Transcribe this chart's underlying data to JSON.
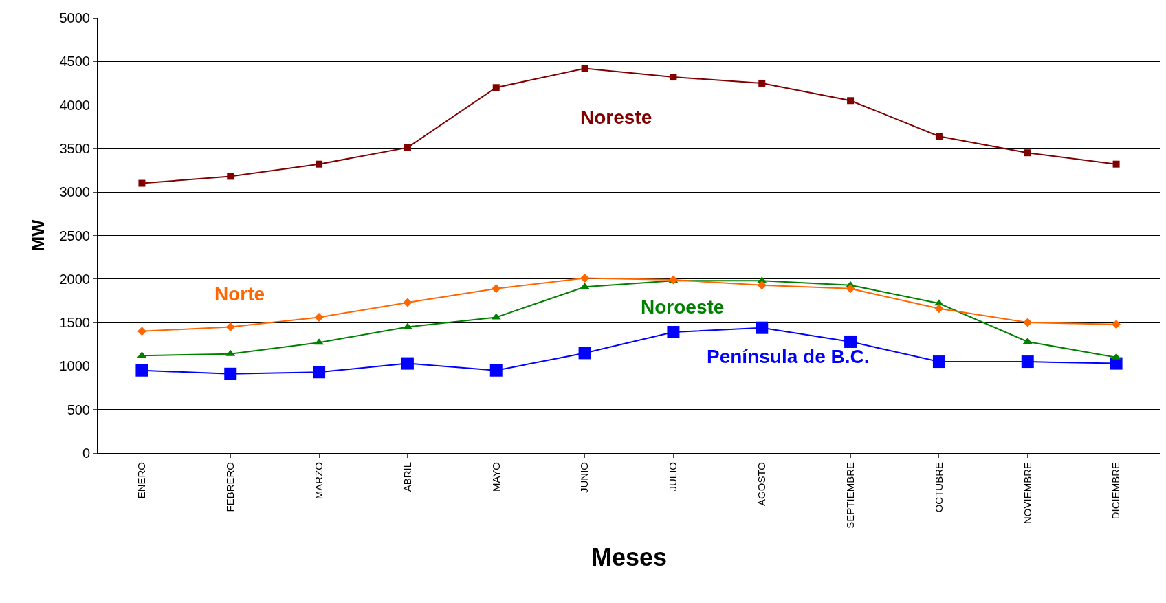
{
  "chart_data": {
    "type": "line",
    "xlabel": "Meses",
    "ylabel": "MW",
    "categories": [
      "ENERO",
      "FEBRERO",
      "MARZO",
      "ABRIL",
      "MAYO",
      "JUNIO",
      "JULIO",
      "AGOSTO",
      "SEPTIEMBRE",
      "OCTUBRE",
      "NOVIEMBRE",
      "DICIEMBRE"
    ],
    "series": [
      {
        "name": "Noreste",
        "color": "#800000",
        "marker": "square",
        "values": [
          3100,
          3180,
          3320,
          3510,
          4200,
          4420,
          4320,
          4250,
          4050,
          3640,
          3450,
          3320
        ]
      },
      {
        "name": "Norte",
        "color": "#ff6600",
        "marker": "diamond",
        "values": [
          1400,
          1450,
          1560,
          1730,
          1890,
          2010,
          1990,
          1930,
          1890,
          1660,
          1500,
          1480
        ]
      },
      {
        "name": "Noroeste",
        "color": "#008000",
        "marker": "triangle",
        "values": [
          1120,
          1140,
          1270,
          1450,
          1560,
          1910,
          1980,
          1980,
          1930,
          1720,
          1280,
          1100
        ]
      },
      {
        "name": "Península de B.C.",
        "color": "#0000ff",
        "marker": "square",
        "values": [
          950,
          910,
          930,
          1030,
          950,
          1150,
          1390,
          1440,
          1280,
          1050,
          1050,
          1030
        ]
      }
    ],
    "ylim": [
      0,
      5000
    ],
    "yticks": [
      0,
      500,
      1000,
      1500,
      2000,
      2500,
      3000,
      3500,
      4000,
      4500,
      5000
    ],
    "grid": "y",
    "legend": false,
    "line_style": "solid"
  }
}
